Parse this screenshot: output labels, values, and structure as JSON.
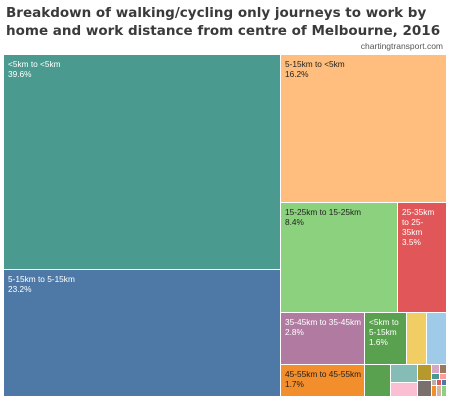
{
  "title": "Breakdown of walking/cycling only journeys to work by home and work distance from centre of Melbourne, 2016",
  "credit": "chartingtransport.com",
  "chart_data": {
    "type": "treemap",
    "title": "Breakdown of walking/cycling only journeys to work by home and work distance from centre of Melbourne, 2016",
    "items": [
      {
        "label": "<5km to <5km",
        "value": "39.6%",
        "share": 39.6,
        "color": "#4b9a8f",
        "text_color": "#ffffff"
      },
      {
        "label": "5-15km to 5-15km",
        "value": "23.2%",
        "share": 23.2,
        "color": "#4e79a7",
        "text_color": "#ffffff"
      },
      {
        "label": "5-15km to <5km",
        "value": "16.2%",
        "share": 16.2,
        "color": "#ffbe7d",
        "text_color": "#222222"
      },
      {
        "label": "15-25km to 15-25km",
        "value": "8.4%",
        "share": 8.4,
        "color": "#8cd17d",
        "text_color": "#222222"
      },
      {
        "label": "25-35km to 25-35km",
        "value": "3.5%",
        "share": 3.5,
        "color": "#e15759",
        "text_color": "#ffffff"
      },
      {
        "label": "35-45km to 35-45km",
        "value": "2.8%",
        "share": 2.8,
        "color": "#b07aa1",
        "text_color": "#ffffff"
      },
      {
        "label": "<5km to 5-15km",
        "value": "1.6%",
        "share": 1.6,
        "color": "#59a14f",
        "text_color": "#ffffff"
      },
      {
        "label": "45-55km to 45-55km",
        "value": "1.7%",
        "share": 1.7,
        "color": "#f28e2b",
        "text_color": "#222222"
      },
      {
        "label": "",
        "value": "",
        "color": "#f1ce63"
      },
      {
        "label": "",
        "value": "",
        "color": "#a0cbe8"
      },
      {
        "label": "",
        "value": "",
        "color": "#59a14f"
      },
      {
        "label": "",
        "value": "",
        "color": "#86bcb6"
      },
      {
        "label": "",
        "value": "",
        "color": "#fabfd2"
      },
      {
        "label": "",
        "value": "",
        "color": "#b6992d"
      },
      {
        "label": "",
        "value": "",
        "color": "#79706e"
      },
      {
        "label": "",
        "value": "",
        "color": "#d4a6c8"
      },
      {
        "label": "",
        "value": "",
        "color": "#9d7660"
      },
      {
        "label": "",
        "value": "",
        "color": "#499894"
      },
      {
        "label": "",
        "value": "",
        "color": "#ff9d9a"
      },
      {
        "label": "",
        "value": "",
        "color": "#bab0ac"
      },
      {
        "label": "",
        "value": "",
        "color": "#e15759"
      },
      {
        "label": "",
        "value": "",
        "color": "#4e79a7"
      },
      {
        "label": "",
        "value": "",
        "color": "#f28e2b"
      },
      {
        "label": "",
        "value": "",
        "color": "#d7b5a6"
      },
      {
        "label": "",
        "value": "",
        "color": "#8cd17d"
      }
    ]
  }
}
